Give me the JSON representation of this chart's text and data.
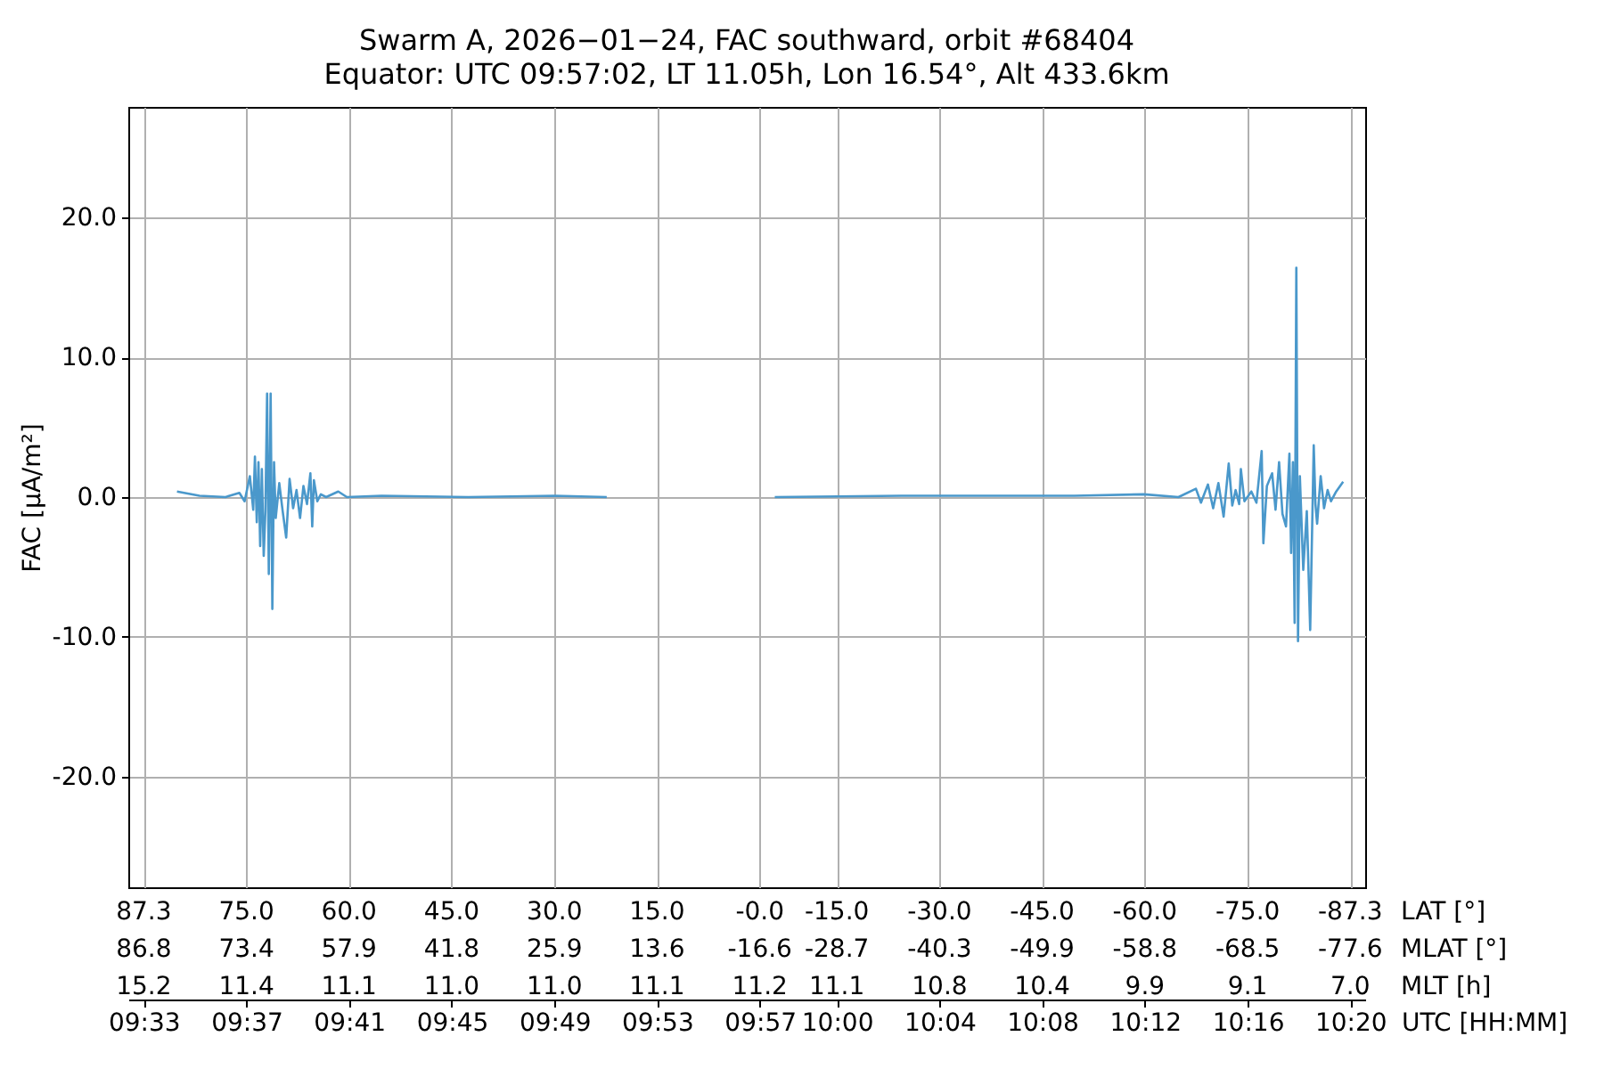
{
  "chart_data": {
    "type": "line",
    "title": "Swarm A, 2026−01−24, FAC southward, orbit #68404",
    "subtitle": "Equator: UTC 09:57:02, LT 11.05h, Lon 16.54°, Alt 433.6km",
    "ylabel": "FAC [µA/m²]",
    "xlabel": "UTC [HH:MM]",
    "annotations": [
      "LAT [°]",
      "87.3",
      "75.0",
      "60.0",
      "45.0",
      "30.0",
      "15.0",
      "-0.0",
      "-15.0",
      "-30.0",
      "-45.0",
      "-60.0",
      "-75.0",
      "-87.3",
      "MLAT [°]",
      "86.8",
      "73.4",
      "57.9",
      "41.8",
      "25.9",
      "13.6",
      "-16.6",
      "-28.7",
      "-40.3",
      "-49.9",
      "-58.8",
      "-68.5",
      "-77.6",
      "MLT [h]",
      "15.2",
      "11.4",
      "11.1",
      "11.0",
      "11.0",
      "11.1",
      "11.2",
      "11.1",
      "10.8",
      "10.4",
      "9.9",
      "9.1",
      "7.0"
    ],
    "color": "#4a98cb",
    "x": [
      9.5716,
      9.5862,
      9.6031,
      9.6121,
      9.6155,
      9.6189,
      9.6211,
      9.6222,
      9.6234,
      9.6245,
      9.6256,
      9.6267,
      9.6279,
      9.629,
      9.6301,
      9.6312,
      9.6324,
      9.6335,
      9.6346,
      9.6357,
      9.638,
      9.6402,
      9.6425,
      9.6447,
      9.647,
      9.6492,
      9.6515,
      9.6537,
      9.656,
      9.6582,
      9.6594,
      9.6605,
      9.6627,
      9.665,
      9.6684,
      9.6763,
      9.6819,
      9.7044,
      9.7606,
      9.8169,
      9.8506,
      9.9,
      9.9597,
      10.0418,
      10.1543,
      10.1993,
      10.2218,
      10.2331,
      10.2364,
      10.2409,
      10.2443,
      10.2477,
      10.2511,
      10.2544,
      10.2567,
      10.2589,
      10.2612,
      10.2623,
      10.2646,
      10.2691,
      10.2724,
      10.2758,
      10.2769,
      10.2792,
      10.2826,
      10.2848,
      10.2871,
      10.2893,
      10.2916,
      10.2938,
      10.2949,
      10.2961,
      10.2972,
      10.2983,
      10.2994,
      10.3006,
      10.3028,
      10.3051,
      10.3073,
      10.3096,
      10.3107,
      10.3118,
      10.3141,
      10.3163,
      10.3186,
      10.3208,
      10.3242,
      10.3287
    ],
    "values": [
      0.4,
      0.1,
      0.0,
      0.3,
      -0.3,
      1.5,
      -0.9,
      2.9,
      -1.8,
      2.5,
      -3.5,
      2.0,
      -4.2,
      -1.0,
      7.4,
      -5.5,
      7.4,
      -8.0,
      2.5,
      -1.5,
      1.0,
      -1.0,
      -2.9,
      1.3,
      -0.8,
      0.5,
      -1.5,
      0.8,
      -0.5,
      1.7,
      -2.1,
      1.2,
      -0.3,
      0.2,
      0.0,
      0.4,
      0.0,
      0.1,
      0.0,
      0.1,
      0.0,
      null,
      0.0,
      0.1,
      0.1,
      0.2,
      0.0,
      0.6,
      -0.4,
      0.9,
      -0.8,
      1.0,
      -1.4,
      2.4,
      -0.6,
      0.5,
      -0.5,
      2.0,
      -0.3,
      0.4,
      -0.4,
      3.3,
      -3.3,
      0.8,
      1.7,
      -0.9,
      2.5,
      -1.2,
      -2.1,
      3.1,
      -4.0,
      2.5,
      -9.0,
      16.4,
      -10.3,
      1.5,
      -5.2,
      -1.0,
      -9.5,
      3.7,
      -0.5,
      -1.9,
      1.5,
      -0.8,
      0.5,
      -0.3,
      0.4,
      1.1
    ],
    "xlim": [
      9.54,
      10.343
    ],
    "xticks": [
      {
        "value": 9.55,
        "label": "09:33"
      },
      {
        "value": 9.6167,
        "label": "09:37"
      },
      {
        "value": 9.6833,
        "label": "09:41"
      },
      {
        "value": 9.75,
        "label": "09:45"
      },
      {
        "value": 9.8167,
        "label": "09:49"
      },
      {
        "value": 9.8833,
        "label": "09:53"
      },
      {
        "value": 9.95,
        "label": "09:57"
      },
      {
        "value": 10.0,
        "label": "10:00"
      },
      {
        "value": 10.0667,
        "label": "10:04"
      },
      {
        "value": 10.1333,
        "label": "10:08"
      },
      {
        "value": 10.2,
        "label": "10:12"
      },
      {
        "value": 10.2667,
        "label": "10:16"
      },
      {
        "value": 10.3333,
        "label": "10:20"
      }
    ],
    "ylim": [
      -27.9,
      27.9
    ],
    "yticks": [
      {
        "value": -20,
        "label": "-20.0"
      },
      {
        "value": -10,
        "label": "-10.0"
      },
      {
        "value": 0,
        "label": "0.0"
      },
      {
        "value": 10,
        "label": "10.0"
      },
      {
        "value": 20,
        "label": "20.0"
      }
    ],
    "grid": true
  }
}
